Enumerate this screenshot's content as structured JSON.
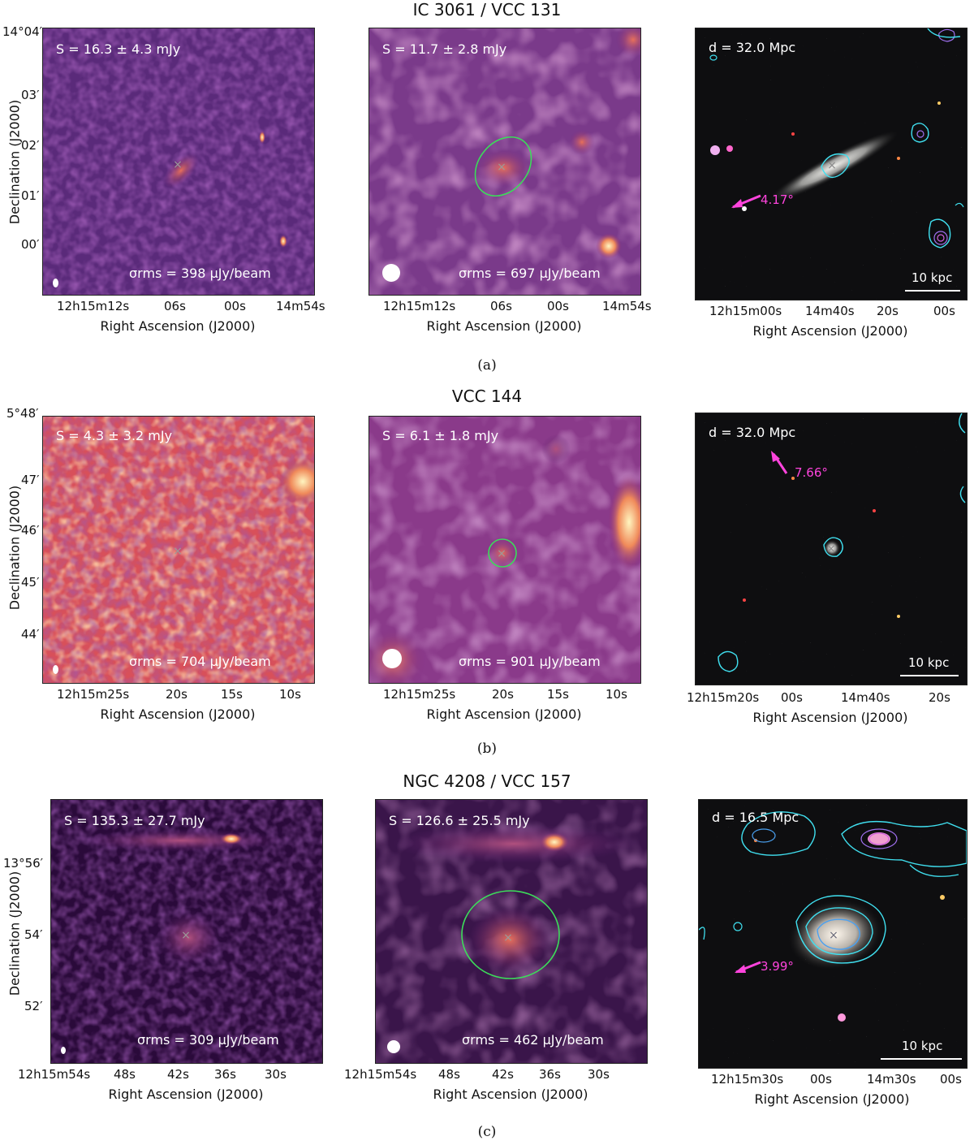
{
  "rows": [
    {
      "title": "IC 3061 / VCC 131",
      "caption": "(a)",
      "p1": {
        "flux": "S = 16.3 ± 4.3 mJy",
        "rms": "σrms = 398 μJy/beam"
      },
      "p2": {
        "flux": "S = 11.7 ± 2.8 mJy",
        "rms": "σrms = 697 μJy/beam"
      },
      "p3": {
        "dist": "d = 32.0 Mpc",
        "angle": "4.17°",
        "scale": "10 kpc"
      },
      "ra_ticks_1": [
        "12h15m12s",
        "06s",
        "00s",
        "14m54s"
      ],
      "ra_ticks_3": [
        "12h15m00s",
        "14m40s",
        "20s",
        "00s"
      ],
      "dec_ticks": [
        "14°04′",
        "03′",
        "02′",
        "01′",
        "00′"
      ]
    },
    {
      "title": "VCC 144",
      "caption": "(b)",
      "p1": {
        "flux": "S = 4.3 ± 3.2 mJy",
        "rms": "σrms = 704 μJy/beam"
      },
      "p2": {
        "flux": "S = 6.1 ± 1.8 mJy",
        "rms": "σrms = 901 μJy/beam"
      },
      "p3": {
        "dist": "d = 32.0 Mpc",
        "angle": "7.66°",
        "scale": "10 kpc"
      },
      "ra_ticks_1": [
        "12h15m25s",
        "20s",
        "15s",
        "10s"
      ],
      "ra_ticks_3": [
        "12h15m20s",
        "00s",
        "14m40s",
        "20s"
      ],
      "dec_ticks": [
        "5°48′",
        "47′",
        "46′",
        "45′",
        "44′"
      ]
    },
    {
      "title": "NGC 4208 / VCC 157",
      "caption": "(c)",
      "p1": {
        "flux": "S = 135.3 ± 27.7 mJy",
        "rms": "σrms = 309 μJy/beam"
      },
      "p2": {
        "flux": "S = 126.6 ± 25.5 mJy",
        "rms": "σrms = 462 μJy/beam"
      },
      "p3": {
        "dist": "d = 16.5 Mpc",
        "angle": "3.99°",
        "scale": "10 kpc"
      },
      "ra_ticks_1": [
        "12h15m54s",
        "48s",
        "42s",
        "36s",
        "30s"
      ],
      "ra_ticks_3": [
        "12h15m30s",
        "00s",
        "14m30s",
        "00s"
      ],
      "dec_ticks": [
        "13°56′",
        "54′",
        "52′"
      ]
    }
  ],
  "axis": {
    "xlabel": "Right Ascension (J2000)",
    "ylabel": "Declination (J2000)"
  }
}
